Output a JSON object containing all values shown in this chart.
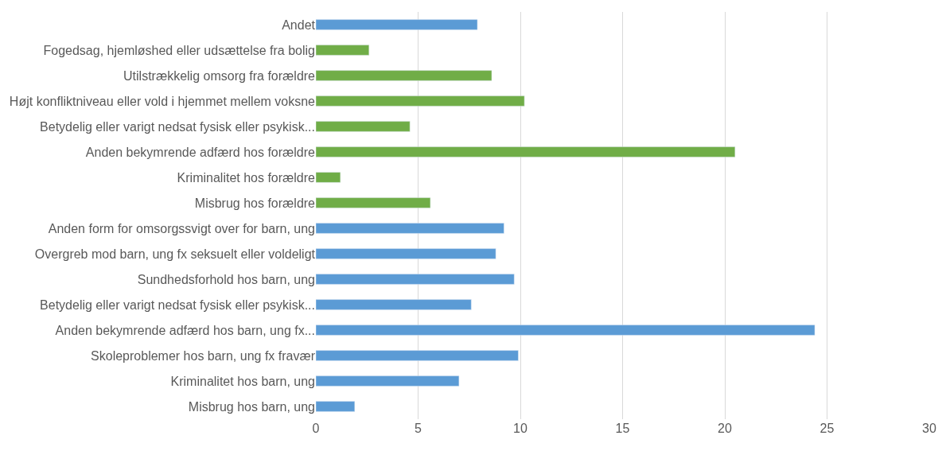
{
  "chart_data": {
    "type": "bar",
    "orientation": "horizontal",
    "categories": [
      "Andet",
      "Fogedsag, hjemløshed eller udsættelse fra bolig",
      "Utilstrækkelig omsorg fra forældre",
      "Højt konfliktniveau eller vold i hjemmet mellem voksne",
      "Betydelig eller varigt nedsat fysisk eller psykisk...",
      "Anden bekymrende adfærd hos forældre",
      "Kriminalitet hos forældre",
      "Misbrug hos forældre",
      "Anden form for omsorgssvigt over for barn, ung",
      "Overgreb mod barn, ung fx seksuelt eller voldeligt",
      "Sundhedsforhold hos barn, ung",
      "Betydelig eller varigt nedsat fysisk eller psykisk...",
      "Anden bekymrende adfærd hos barn, ung fx...",
      "Skoleproblemer hos barn, ung fx fravær",
      "Kriminalitet hos barn, ung",
      "Misbrug hos barn, ung"
    ],
    "values": [
      7.9,
      2.6,
      8.6,
      10.2,
      4.6,
      20.5,
      1.2,
      5.6,
      9.2,
      8.8,
      9.7,
      7.6,
      24.4,
      9.9,
      7.0,
      1.9
    ],
    "colors": [
      "#5b9bd5",
      "#70ad47",
      "#70ad47",
      "#70ad47",
      "#70ad47",
      "#70ad47",
      "#70ad47",
      "#70ad47",
      "#5b9bd5",
      "#5b9bd5",
      "#5b9bd5",
      "#5b9bd5",
      "#5b9bd5",
      "#5b9bd5",
      "#5b9bd5",
      "#5b9bd5"
    ],
    "xlim": [
      0,
      30
    ],
    "xticks": [
      0,
      5,
      10,
      15,
      20,
      25,
      30
    ],
    "grid": "x"
  }
}
